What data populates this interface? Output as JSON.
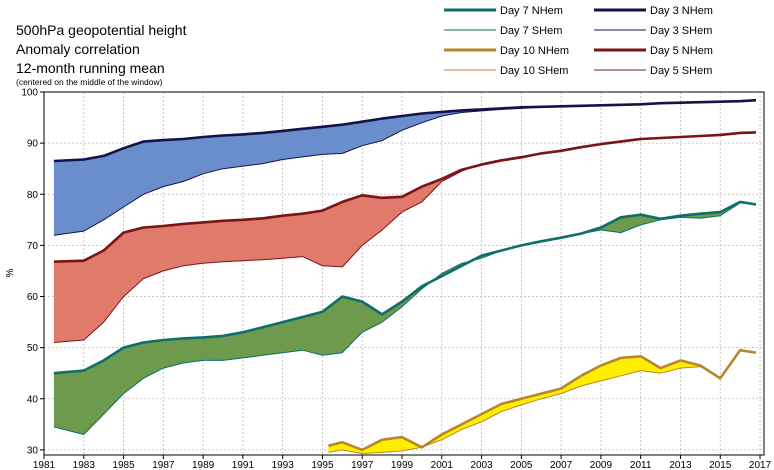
{
  "header": {
    "title_line1": "500hPa geopotential height",
    "title_line2": "Anomaly correlation",
    "title_line3": "12-month running mean",
    "subtitle": "(centered on the middle of the window)"
  },
  "legend": [
    {
      "label": "Day 7 NHem",
      "color": "#0d6e6a",
      "width": 3
    },
    {
      "label": "Day 3 NHem",
      "color": "#14124a",
      "width": 3
    },
    {
      "label": "Day 7 SHem",
      "color": "#0d6e6a",
      "width": 1
    },
    {
      "label": "Day 3 SHem",
      "color": "#14124a",
      "width": 1
    },
    {
      "label": "Day 10 NHem",
      "color": "#b8862b",
      "width": 3
    },
    {
      "label": "Day 5 NHem",
      "color": "#7a1416",
      "width": 3
    },
    {
      "label": "Day 10 SHem",
      "color": "#b8862b",
      "width": 1
    },
    {
      "label": "Day 5 SHem",
      "color": "#7a1416",
      "width": 1
    }
  ],
  "chart_data": {
    "type": "area",
    "title": "500hPa geopotential height",
    "xlabel": "",
    "ylabel": "%",
    "xlim": [
      1981,
      2017.2
    ],
    "ylim": [
      29,
      100
    ],
    "x_ticks": [
      "1981",
      "1983",
      "1985",
      "1987",
      "1989",
      "1991",
      "1993",
      "1995",
      "1997",
      "1999",
      "2001",
      "2003",
      "2005",
      "2007",
      "2009",
      "2011",
      "2013",
      "2015",
      "2017"
    ],
    "y_ticks": [
      "30",
      "40",
      "50",
      "60",
      "70",
      "80",
      "90",
      "100"
    ],
    "grid": true,
    "series": [
      {
        "name": "Day 3 NHem",
        "color": "#14124a",
        "fill": "#6a8ecb",
        "x": [
          1981.5,
          1983,
          1984,
          1985,
          1986,
          1987,
          1988,
          1989,
          1990,
          1991,
          1992,
          1993,
          1994,
          1995,
          1996,
          1997,
          1998,
          1999,
          2000,
          2001,
          2002,
          2003,
          2004,
          2005,
          2006,
          2007,
          2008,
          2009,
          2010,
          2011,
          2012,
          2013,
          2014,
          2015,
          2016,
          2016.8
        ],
        "values": [
          86.5,
          86.8,
          87.5,
          89,
          90.3,
          90.6,
          90.8,
          91.2,
          91.5,
          91.7,
          92,
          92.4,
          92.8,
          93.2,
          93.6,
          94.2,
          94.8,
          95.3,
          95.8,
          96.1,
          96.4,
          96.6,
          96.8,
          97,
          97.1,
          97.2,
          97.3,
          97.4,
          97.5,
          97.6,
          97.8,
          97.9,
          98,
          98.1,
          98.2,
          98.4
        ]
      },
      {
        "name": "Day 3 SHem",
        "color": "#14124a",
        "x": [
          1981.5,
          1983,
          1984,
          1985,
          1986,
          1987,
          1988,
          1989,
          1990,
          1991,
          1992,
          1993,
          1994,
          1995,
          1996,
          1997,
          1998,
          1999,
          2000,
          2001,
          2002,
          2003,
          2004,
          2005,
          2006,
          2007,
          2008,
          2009,
          2010,
          2011,
          2012,
          2013,
          2014,
          2015,
          2016,
          2016.8
        ],
        "values": [
          72,
          72.8,
          75,
          77.5,
          80,
          81.5,
          82.5,
          84,
          85,
          85.5,
          86,
          86.8,
          87.3,
          87.8,
          88,
          89.5,
          90.5,
          92.5,
          94,
          95.3,
          96,
          96.3,
          96.6,
          96.8,
          97,
          97.1,
          97.3,
          97.4,
          97.5,
          97.6,
          97.8,
          97.9,
          98,
          98.1,
          98.2,
          98.4
        ]
      },
      {
        "name": "Day 5 NHem",
        "color": "#7a1416",
        "fill": "#e07a6a",
        "x": [
          1981.5,
          1983,
          1984,
          1985,
          1986,
          1987,
          1988,
          1989,
          1990,
          1991,
          1992,
          1993,
          1994,
          1995,
          1996,
          1997,
          1998,
          1999,
          2000,
          2001,
          2002,
          2003,
          2004,
          2005,
          2006,
          2007,
          2008,
          2009,
          2010,
          2011,
          2012,
          2013,
          2014,
          2015,
          2016,
          2016.8
        ],
        "values": [
          66.8,
          67,
          69,
          72.5,
          73.5,
          73.8,
          74.2,
          74.5,
          74.8,
          75,
          75.3,
          75.8,
          76.2,
          76.8,
          78.5,
          79.8,
          79.3,
          79.5,
          81.5,
          83,
          84.8,
          85.8,
          86.6,
          87.2,
          88,
          88.5,
          89.2,
          89.8,
          90.3,
          90.8,
          91,
          91.2,
          91.4,
          91.6,
          92,
          92.1
        ]
      },
      {
        "name": "Day 5 SHem",
        "color": "#7a1416",
        "x": [
          1981.5,
          1983,
          1984,
          1985,
          1986,
          1987,
          1988,
          1989,
          1990,
          1991,
          1992,
          1993,
          1994,
          1995,
          1996,
          1997,
          1998,
          1999,
          2000,
          2001,
          2002,
          2003,
          2004,
          2005,
          2006,
          2007,
          2008,
          2009,
          2010,
          2011,
          2012,
          2013,
          2014,
          2015,
          2016,
          2016.8
        ],
        "values": [
          51,
          51.5,
          55,
          60,
          63.5,
          65,
          66,
          66.5,
          66.8,
          67,
          67.2,
          67.5,
          67.8,
          66,
          65.8,
          70,
          73,
          76.5,
          78.5,
          82.5,
          84.5,
          86,
          86.8,
          87.4,
          88,
          88.5,
          89.2,
          89.8,
          90.3,
          90.8,
          91,
          91.2,
          91.4,
          91.6,
          92,
          92.1
        ]
      },
      {
        "name": "Day 7 NHem",
        "color": "#0d6e6a",
        "fill": "#6d9a4c",
        "x": [
          1981.5,
          1983,
          1984,
          1985,
          1986,
          1987,
          1988,
          1989,
          1990,
          1991,
          1992,
          1993,
          1994,
          1995,
          1996,
          1997,
          1998,
          1999,
          2000,
          2001,
          2002,
          2003,
          2004,
          2005,
          2006,
          2007,
          2008,
          2009,
          2010,
          2011,
          2012,
          2013,
          2014,
          2015,
          2016,
          2016.8
        ],
        "values": [
          45,
          45.5,
          47.5,
          50,
          51,
          51.5,
          51.8,
          52,
          52.3,
          53,
          54,
          55,
          56,
          57,
          60,
          59,
          56.5,
          59,
          62,
          64,
          66,
          68,
          69,
          70,
          70.8,
          71.5,
          72.3,
          73.5,
          75.5,
          76,
          75.2,
          75.8,
          76.2,
          76.5,
          78.5,
          78
        ]
      },
      {
        "name": "Day 7 SHem",
        "color": "#0d6e6a",
        "x": [
          1981.5,
          1983,
          1984,
          1985,
          1986,
          1987,
          1988,
          1989,
          1990,
          1991,
          1992,
          1993,
          1994,
          1995,
          1996,
          1997,
          1998,
          1999,
          2000,
          2001,
          2002,
          2003,
          2004,
          2005,
          2006,
          2007,
          2008,
          2009,
          2010,
          2011,
          2012,
          2013,
          2014,
          2015,
          2016,
          2016.8
        ],
        "values": [
          34.5,
          33,
          37,
          41,
          44,
          46,
          47,
          47.5,
          47.5,
          48,
          48.5,
          49,
          49.5,
          48.5,
          49,
          53,
          55,
          58,
          61.5,
          64.5,
          66.5,
          67.5,
          69,
          70,
          70.8,
          71.5,
          72.3,
          73,
          72.5,
          74,
          75,
          75.5,
          75.3,
          75.8,
          78.3,
          78
        ]
      },
      {
        "name": "Day 10 NHem",
        "color": "#b8862b",
        "fill": "#ffee00",
        "x": [
          1995.3,
          1996,
          1997,
          1998,
          1999,
          2000,
          2001,
          2002,
          2003,
          2004,
          2005,
          2006,
          2007,
          2008,
          2009,
          2010,
          2011,
          2012,
          2013,
          2014,
          2015,
          2016,
          2016.8
        ],
        "values": [
          30.8,
          31.5,
          30,
          32,
          32.5,
          30.5,
          33,
          35,
          37,
          39,
          40,
          41,
          42,
          44.5,
          46.5,
          48,
          48.3,
          46,
          47.5,
          46.5,
          44,
          49.5,
          49
        ]
      },
      {
        "name": "Day 10 SHem",
        "color": "#b8862b",
        "x": [
          1995.3,
          1996,
          1997,
          1998,
          1999,
          2000,
          2001,
          2002,
          2003,
          2004,
          2005,
          2006,
          2007,
          2008,
          2009,
          2010,
          2011,
          2012,
          2013,
          2014,
          2015,
          2016,
          2016.8
        ],
        "values": [
          29.5,
          30,
          29.3,
          29.5,
          29.8,
          30.5,
          32,
          34,
          35.5,
          37.5,
          38.8,
          40,
          41,
          42.5,
          43.5,
          44.5,
          45.5,
          45,
          46,
          46.3,
          44,
          49.5,
          49
        ]
      }
    ]
  }
}
